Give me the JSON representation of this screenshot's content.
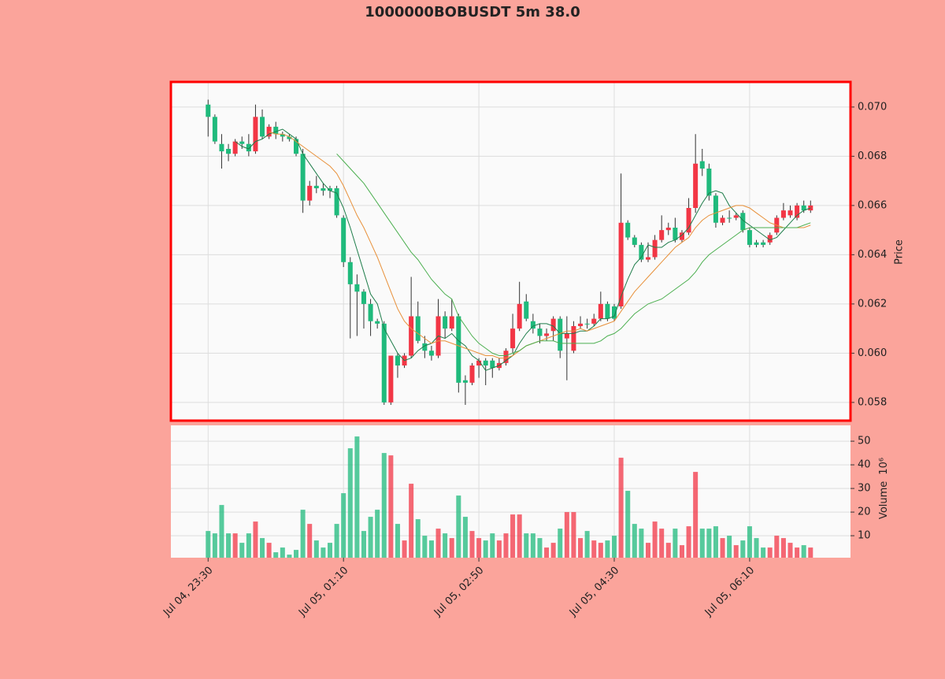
{
  "chart_data": {
    "type": "candlestick",
    "title": "1000000BOBUSDT 5m 38.0",
    "up_color": "#f23645",
    "down_color": "#1fba7c",
    "xlim": [
      -5.5,
      94.9
    ],
    "xticks": [
      {
        "value": 0,
        "label": "Jul 04, 23:30"
      },
      {
        "value": 20,
        "label": "Jul 05, 01:10"
      },
      {
        "value": 40,
        "label": "Jul 05, 02:50"
      },
      {
        "value": 60,
        "label": "Jul 05, 04:30"
      },
      {
        "value": 80,
        "label": "Jul 05, 06:10"
      }
    ],
    "ylabel": "Price",
    "ylim": [
      0.05726,
      0.07102
    ],
    "yticks": [
      0.058,
      {
        "value": 0.06,
        "label": "0.060"
      },
      0.062,
      0.064,
      0.066,
      0.068,
      {
        "value": 0.07,
        "label": "0.070"
      }
    ],
    "grid": true,
    "open": [
      0.0701,
      0.0696,
      0.0685,
      0.0683,
      0.0681,
      0.0686,
      0.0685,
      0.0682,
      0.0696,
      0.0688,
      0.0692,
      0.0689,
      0.0688,
      0.0687,
      0.0681,
      0.0662,
      0.0668,
      0.0667,
      0.0667,
      0.0667,
      0.0655,
      0.0637,
      0.0628,
      0.0625,
      0.062,
      0.0613,
      0.0612,
      0.058,
      0.0599,
      0.0595,
      0.0599,
      0.0615,
      0.0604,
      0.0601,
      0.0599,
      0.0615,
      0.061,
      0.0615,
      0.0589,
      0.0588,
      0.0595,
      0.0597,
      0.0597,
      0.0594,
      0.0596,
      0.0602,
      0.061,
      0.0621,
      0.0613,
      0.061,
      0.0607,
      0.0609,
      0.0614,
      0.0606,
      0.0601,
      0.0611,
      0.0612,
      0.0612,
      0.0614,
      0.062,
      0.0619,
      0.0619,
      0.0653,
      0.0647,
      0.0644,
      0.0638,
      0.0639,
      0.0646,
      0.065,
      0.0651,
      0.0646,
      0.0649,
      0.0659,
      0.0678,
      0.0675,
      0.0664,
      0.0653,
      0.0655,
      0.0655,
      0.0657,
      0.065,
      0.0645,
      0.0645,
      0.0645,
      0.0649,
      0.0655,
      0.0656,
      0.0655,
      0.066,
      0.0658
    ],
    "high": [
      0.0703,
      0.0697,
      0.0689,
      0.0685,
      0.0687,
      0.0688,
      0.0689,
      0.0701,
      0.0699,
      0.0693,
      0.0694,
      0.069,
      0.0689,
      0.0688,
      0.0683,
      0.067,
      0.0672,
      0.0669,
      0.0668,
      0.0668,
      0.0656,
      0.0639,
      0.0632,
      0.0626,
      0.0622,
      0.0614,
      0.0613,
      0.0599,
      0.06,
      0.06,
      0.0631,
      0.0621,
      0.0607,
      0.0603,
      0.0622,
      0.0617,
      0.0622,
      0.0616,
      0.0591,
      0.0596,
      0.0598,
      0.0598,
      0.0598,
      0.0598,
      0.0602,
      0.0616,
      0.0629,
      0.0624,
      0.0616,
      0.0612,
      0.061,
      0.0615,
      0.0615,
      0.0615,
      0.0613,
      0.0615,
      0.0614,
      0.0616,
      0.0625,
      0.0621,
      0.062,
      0.0673,
      0.0654,
      0.0648,
      0.0645,
      0.0645,
      0.0648,
      0.0656,
      0.0653,
      0.0655,
      0.065,
      0.0663,
      0.0689,
      0.0683,
      0.0677,
      0.0665,
      0.0656,
      0.0658,
      0.0657,
      0.0658,
      0.0651,
      0.0646,
      0.0646,
      0.0649,
      0.0656,
      0.0661,
      0.066,
      0.0661,
      0.0662,
      0.0662
    ],
    "low": [
      0.0688,
      0.0685,
      0.0675,
      0.0678,
      0.068,
      0.0683,
      0.068,
      0.0681,
      0.0687,
      0.0687,
      0.0687,
      0.0686,
      0.0686,
      0.068,
      0.0657,
      0.066,
      0.0665,
      0.0664,
      0.0663,
      0.0655,
      0.0635,
      0.0606,
      0.0607,
      0.061,
      0.0607,
      0.061,
      0.0579,
      0.0579,
      0.059,
      0.0594,
      0.0598,
      0.0604,
      0.0598,
      0.0597,
      0.0598,
      0.0606,
      0.0609,
      0.0584,
      0.0579,
      0.0587,
      0.059,
      0.0587,
      0.059,
      0.0593,
      0.0595,
      0.06,
      0.0609,
      0.0613,
      0.0608,
      0.0604,
      0.0605,
      0.0605,
      0.0598,
      0.0589,
      0.06,
      0.061,
      0.061,
      0.0611,
      0.0613,
      0.0613,
      0.0613,
      0.0618,
      0.0646,
      0.0643,
      0.0637,
      0.0637,
      0.0638,
      0.0645,
      0.0648,
      0.0645,
      0.0645,
      0.0648,
      0.0657,
      0.0672,
      0.0662,
      0.0651,
      0.0652,
      0.0653,
      0.0654,
      0.0649,
      0.0643,
      0.0643,
      0.0643,
      0.0644,
      0.0648,
      0.0654,
      0.0655,
      0.0654,
      0.0657,
      0.0657
    ],
    "close": [
      0.0696,
      0.0686,
      0.0682,
      0.0681,
      0.0686,
      0.0685,
      0.0682,
      0.0696,
      0.0688,
      0.0692,
      0.0689,
      0.0688,
      0.0687,
      0.0681,
      0.0662,
      0.0668,
      0.0667,
      0.0666,
      0.0666,
      0.0656,
      0.0637,
      0.0628,
      0.0625,
      0.062,
      0.0613,
      0.0612,
      0.058,
      0.0599,
      0.0595,
      0.0599,
      0.0615,
      0.0605,
      0.0601,
      0.0599,
      0.0615,
      0.061,
      0.0615,
      0.0588,
      0.0588,
      0.0595,
      0.0597,
      0.0595,
      0.0594,
      0.0596,
      0.0601,
      0.061,
      0.062,
      0.0614,
      0.061,
      0.0607,
      0.0608,
      0.0614,
      0.0601,
      0.0608,
      0.0611,
      0.0612,
      0.0612,
      0.0614,
      0.062,
      0.0614,
      0.0614,
      0.0653,
      0.0647,
      0.0644,
      0.0638,
      0.0639,
      0.0646,
      0.065,
      0.0651,
      0.0646,
      0.0649,
      0.0659,
      0.0677,
      0.0675,
      0.0664,
      0.0653,
      0.0655,
      0.0655,
      0.0656,
      0.065,
      0.0644,
      0.0644,
      0.0644,
      0.0648,
      0.0655,
      0.0658,
      0.0658,
      0.066,
      0.0658,
      0.066
    ],
    "series": [
      {
        "color": "#1e7d4a",
        "values": [
          null,
          null,
          null,
          null,
          0.0686,
          0.0684,
          0.0683,
          0.0686,
          0.0687,
          0.0689,
          0.069,
          0.0691,
          0.0689,
          0.0687,
          0.0681,
          0.0677,
          0.0673,
          0.0669,
          0.0666,
          0.0665,
          0.0659,
          0.0651,
          0.0642,
          0.0633,
          0.0624,
          0.062,
          0.061,
          0.0605,
          0.06,
          0.0597,
          0.0598,
          0.0601,
          0.0603,
          0.0604,
          0.0607,
          0.0606,
          0.0608,
          0.0605,
          0.0603,
          0.0599,
          0.0597,
          0.0593,
          0.0594,
          0.0595,
          0.0597,
          0.0599,
          0.0604,
          0.0608,
          0.0611,
          0.0612,
          0.0612,
          0.0611,
          0.0608,
          0.0608,
          0.0608,
          0.0609,
          0.0609,
          0.0611,
          0.0614,
          0.0614,
          0.0615,
          0.0623,
          0.063,
          0.0636,
          0.0639,
          0.0644,
          0.0643,
          0.0643,
          0.0645,
          0.0646,
          0.0648,
          0.0651,
          0.0656,
          0.0661,
          0.0665,
          0.0666,
          0.0665,
          0.066,
          0.0657,
          0.0654,
          0.0652,
          0.065,
          0.0648,
          0.0646,
          0.0647,
          0.065,
          0.0653,
          0.0656,
          0.0658,
          0.0659
        ]
      },
      {
        "color": "#e8903a",
        "values": [
          null,
          null,
          null,
          null,
          null,
          null,
          null,
          null,
          null,
          0.069,
          0.0689,
          0.0689,
          0.0688,
          0.0686,
          0.0684,
          0.0682,
          0.068,
          0.0678,
          0.0676,
          0.0673,
          0.0668,
          0.0662,
          0.0656,
          0.0651,
          0.0645,
          0.0639,
          0.0632,
          0.0625,
          0.0618,
          0.0613,
          0.061,
          0.0608,
          0.0606,
          0.0604,
          0.0605,
          0.0605,
          0.0604,
          0.0603,
          0.0602,
          0.0601,
          0.06,
          0.0599,
          0.0599,
          0.0598,
          0.0598,
          0.0599,
          0.0601,
          0.0603,
          0.0604,
          0.0605,
          0.0606,
          0.0607,
          0.0608,
          0.0609,
          0.0609,
          0.061,
          0.0609,
          0.061,
          0.0611,
          0.0612,
          0.0613,
          0.0617,
          0.0621,
          0.0625,
          0.0628,
          0.0631,
          0.0634,
          0.0637,
          0.064,
          0.0643,
          0.0645,
          0.0647,
          0.0651,
          0.0654,
          0.0656,
          0.0657,
          0.0658,
          0.0659,
          0.066,
          0.066,
          0.0659,
          0.0657,
          0.0655,
          0.0653,
          0.0652,
          0.0651,
          0.0651,
          0.0651,
          0.0651,
          0.0652
        ]
      },
      {
        "color": "#4caf50",
        "values": [
          null,
          null,
          null,
          null,
          null,
          null,
          null,
          null,
          null,
          null,
          null,
          null,
          null,
          null,
          null,
          null,
          null,
          null,
          null,
          0.0681,
          0.0678,
          0.0675,
          0.0672,
          0.0669,
          0.0665,
          0.0661,
          0.0657,
          0.0653,
          0.0649,
          0.0645,
          0.0641,
          0.0638,
          0.0634,
          0.063,
          0.0627,
          0.0624,
          0.0622,
          0.0615,
          0.0611,
          0.0607,
          0.0604,
          0.0602,
          0.06,
          0.0599,
          0.0599,
          0.06,
          0.0601,
          0.0603,
          0.0604,
          0.0605,
          0.0605,
          0.0605,
          0.0604,
          0.0604,
          0.0604,
          0.0604,
          0.0604,
          0.0604,
          0.0605,
          0.0607,
          0.0608,
          0.061,
          0.0613,
          0.0616,
          0.0618,
          0.062,
          0.0621,
          0.0622,
          0.0624,
          0.0626,
          0.0628,
          0.063,
          0.0633,
          0.0637,
          0.064,
          0.0642,
          0.0644,
          0.0646,
          0.0648,
          0.065,
          0.0651,
          0.0651,
          0.0651,
          0.0651,
          0.0651,
          0.0651,
          0.0651,
          0.0651,
          0.0652,
          0.0653
        ]
      }
    ],
    "volume": {
      "ylabel": "Volume",
      "offset_label": "10⁶",
      "ylim": [
        0.7,
        56.7
      ],
      "yticks": [
        10,
        20,
        30,
        40,
        50
      ],
      "values": [
        12,
        11,
        23,
        11,
        11,
        7,
        11,
        16,
        9,
        7,
        3,
        5,
        2,
        4,
        21,
        15,
        8,
        5,
        7,
        15,
        28,
        47,
        52,
        12,
        18,
        21,
        45,
        44,
        15,
        8,
        32,
        17,
        10,
        8,
        13,
        11,
        9,
        27,
        18,
        12,
        9,
        8,
        11,
        8,
        11,
        19,
        19,
        11,
        11,
        9,
        5,
        7,
        13,
        20,
        20,
        9,
        12,
        8,
        7,
        8,
        10,
        43,
        29,
        15,
        13,
        7,
        16,
        13,
        7,
        13,
        6,
        14,
        37,
        13,
        13,
        14,
        9,
        10,
        6,
        8,
        14,
        9,
        5,
        5,
        10,
        9,
        7,
        5,
        6,
        5
      ]
    }
  }
}
